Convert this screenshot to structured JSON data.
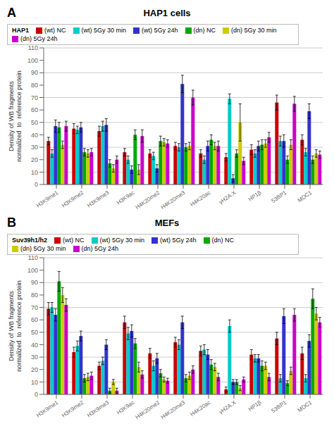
{
  "chart_data": [
    {
      "type": "bar",
      "title": "HAP1 cells",
      "annotations": [
        "A"
      ],
      "legend_title": "HAP1",
      "categories": [
        "H3K9me1",
        "H3K9me2",
        "H3K9me3",
        "H3K9ac",
        "H4K20me2",
        "H4K20me3",
        "H4K20ac",
        "γH2A.X",
        "HP1β",
        "53BP1",
        "MDC1"
      ],
      "series": [
        {
          "name": "(wt) NC",
          "color": "#cc0000",
          "values": [
            35,
            45,
            43,
            26,
            25,
            31,
            25,
            22,
            28,
            66,
            36
          ],
          "errors": [
            3,
            4,
            4,
            3,
            3,
            3,
            3,
            3,
            4,
            6,
            4
          ]
        },
        {
          "name": "(wt) 5Gy 30 min",
          "color": "#00cccc",
          "values": [
            25,
            44,
            47,
            20,
            23,
            30,
            20,
            69,
            25,
            35,
            26
          ],
          "errors": [
            3,
            3,
            4,
            3,
            3,
            3,
            3,
            4,
            3,
            4,
            3
          ]
        },
        {
          "name": "(wt) 5Gy 24h",
          "color": "#3333cc",
          "values": [
            47,
            46,
            48,
            12,
            13,
            81,
            31,
            5,
            31,
            35,
            59
          ],
          "errors": [
            5,
            4,
            5,
            3,
            3,
            7,
            4,
            3,
            4,
            5,
            6
          ]
        },
        {
          "name": "(dn) NC",
          "color": "#00aa00",
          "values": [
            46,
            26,
            17,
            40,
            35,
            30,
            36,
            25,
            32,
            20,
            20
          ],
          "errors": [
            4,
            3,
            3,
            4,
            4,
            3,
            4,
            3,
            4,
            3,
            3
          ]
        },
        {
          "name": "(dn) 5Gy 30 min",
          "color": "#cccc00",
          "values": [
            32,
            25,
            13,
            12,
            34,
            31,
            31,
            50,
            33,
            32,
            25
          ],
          "errors": [
            3,
            3,
            3,
            4,
            3,
            3,
            3,
            15,
            3,
            4,
            3
          ]
        },
        {
          "name": "(dn) 5Gy 24h",
          "color": "#cc00cc",
          "values": [
            47,
            26,
            20,
            39,
            33,
            70,
            31,
            19,
            38,
            65,
            24
          ],
          "errors": [
            4,
            3,
            3,
            5,
            3,
            6,
            4,
            3,
            4,
            6,
            3
          ]
        }
      ],
      "ylabel": "Density of WB fragments\nnormalized  to  reference protein",
      "ylim": [
        0,
        110
      ],
      "yticks": [
        0,
        10,
        20,
        30,
        40,
        50,
        60,
        70,
        80,
        90,
        100,
        110
      ],
      "grid": true,
      "legend": "upper left"
    },
    {
      "type": "bar",
      "title": "MEFs",
      "annotations": [
        "B"
      ],
      "legend_title": "Suv39h1/h2",
      "categories": [
        "H3K9me1",
        "H3K9me2",
        "H3K9me3",
        "H3K9ac",
        "H4K20me2",
        "H4K20me3",
        "H4K20ac",
        "γH2A.X",
        "HP1β",
        "53BP1",
        "MDC1"
      ],
      "series": [
        {
          "name": "(wt) NC",
          "color": "#cc0000",
          "values": [
            69,
            34,
            23,
            58,
            33,
            42,
            35,
            4,
            32,
            45,
            33
          ],
          "errors": [
            5,
            4,
            3,
            5,
            4,
            4,
            4,
            2,
            4,
            5,
            5
          ]
        },
        {
          "name": "(wt) 5Gy 30 min",
          "color": "#00cccc",
          "values": [
            70,
            39,
            27,
            49,
            23,
            40,
            36,
            55,
            29,
            13,
            13
          ],
          "errors": [
            4,
            4,
            3,
            5,
            4,
            4,
            4,
            5,
            3,
            3,
            3
          ]
        },
        {
          "name": "(wt) 5Gy 24h",
          "color": "#3333cc",
          "values": [
            64,
            47,
            40,
            51,
            29,
            58,
            32,
            10,
            29,
            63,
            43
          ],
          "errors": [
            5,
            4,
            4,
            5,
            4,
            5,
            4,
            2,
            3,
            6,
            5
          ]
        },
        {
          "name": "(dn) NC",
          "color": "#00aa00",
          "values": [
            91,
            13,
            3,
            41,
            17,
            13,
            24,
            10,
            23,
            9,
            77
          ],
          "errors": [
            8,
            3,
            2,
            4,
            3,
            3,
            4,
            2,
            4,
            2,
            8
          ]
        },
        {
          "name": "(dn) 5Gy 30 min",
          "color": "#cccc00",
          "values": [
            80,
            14,
            10,
            22,
            12,
            15,
            22,
            5,
            23,
            19,
            65
          ],
          "errors": [
            6,
            3,
            2,
            4,
            2,
            3,
            3,
            2,
            3,
            3,
            5
          ]
        },
        {
          "name": "(dn) 5Gy 24h",
          "color": "#cc00cc",
          "values": [
            72,
            15,
            3,
            16,
            11,
            20,
            14,
            12,
            14,
            64,
            58
          ],
          "errors": [
            5,
            3,
            2,
            3,
            2,
            3,
            3,
            2,
            3,
            5,
            4
          ]
        }
      ],
      "ylabel": "Density of WB fragments\nnormalized  to  reference protein",
      "ylim": [
        0,
        110
      ],
      "yticks": [
        0,
        10,
        20,
        30,
        40,
        50,
        60,
        70,
        80,
        90,
        100,
        110
      ],
      "grid": true,
      "legend": "upper left"
    }
  ]
}
